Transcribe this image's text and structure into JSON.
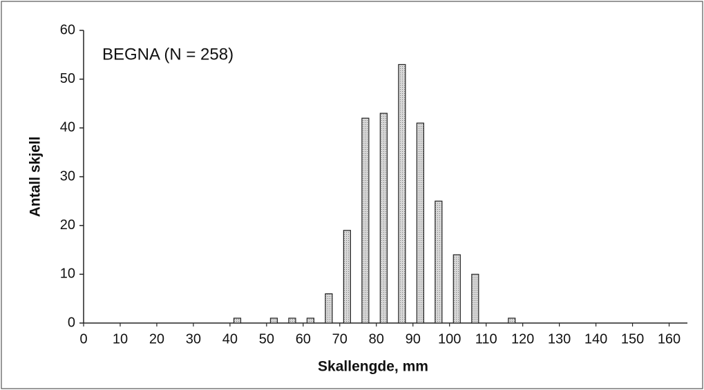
{
  "chart_data": {
    "type": "bar",
    "annotation": "BEGNA (N = 258)",
    "x_label": "Skallengde, mm",
    "y_label": "Antall skjell",
    "x": [
      42,
      52,
      57,
      62,
      67,
      72,
      77,
      82,
      87,
      92,
      97,
      102,
      107,
      117
    ],
    "values": [
      1,
      1,
      1,
      1,
      6,
      19,
      42,
      43,
      53,
      41,
      25,
      14,
      10,
      1
    ],
    "color": "#c4c4c4",
    "xlim": [
      0,
      165
    ],
    "xticks": [
      0,
      10,
      20,
      30,
      40,
      50,
      60,
      70,
      80,
      90,
      100,
      110,
      120,
      130,
      140,
      150,
      160
    ],
    "ylim": [
      0,
      60
    ],
    "yticks": [
      0,
      10,
      20,
      30,
      40,
      50,
      60
    ],
    "grid": false
  }
}
